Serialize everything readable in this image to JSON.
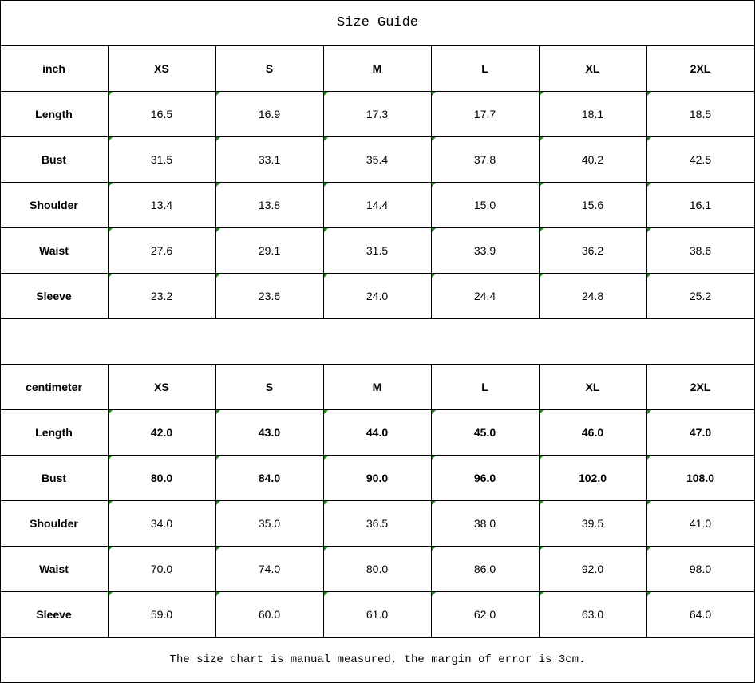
{
  "title": "Size Guide",
  "sizes": [
    "XS",
    "S",
    "M",
    "L",
    "XL",
    "2XL"
  ],
  "indicator_color": "#1a8a1a",
  "inch": {
    "unit_label": "inch",
    "rows": [
      {
        "label": "Length",
        "values": [
          "16.5",
          "16.9",
          "17.3",
          "17.7",
          "18.1",
          "18.5"
        ]
      },
      {
        "label": "Bust",
        "values": [
          "31.5",
          "33.1",
          "35.4",
          "37.8",
          "40.2",
          "42.5"
        ]
      },
      {
        "label": "Shoulder",
        "values": [
          "13.4",
          "13.8",
          "14.4",
          "15.0",
          "15.6",
          "16.1"
        ]
      },
      {
        "label": "Waist",
        "values": [
          "27.6",
          "29.1",
          "31.5",
          "33.9",
          "36.2",
          "38.6"
        ]
      },
      {
        "label": "Sleeve",
        "values": [
          "23.2",
          "23.6",
          "24.0",
          "24.4",
          "24.8",
          "25.2"
        ]
      }
    ]
  },
  "centimeter": {
    "unit_label": "centimeter",
    "rows": [
      {
        "label": "Length",
        "values": [
          "42.0",
          "43.0",
          "44.0",
          "45.0",
          "46.0",
          "47.0"
        ],
        "bold": true
      },
      {
        "label": "Bust",
        "values": [
          "80.0",
          "84.0",
          "90.0",
          "96.0",
          "102.0",
          "108.0"
        ],
        "bold": true
      },
      {
        "label": "Shoulder",
        "values": [
          "34.0",
          "35.0",
          "36.5",
          "38.0",
          "39.5",
          "41.0"
        ]
      },
      {
        "label": "Waist",
        "values": [
          "70.0",
          "74.0",
          "80.0",
          "86.0",
          "92.0",
          "98.0"
        ]
      },
      {
        "label": "Sleeve",
        "values": [
          "59.0",
          "60.0",
          "61.0",
          "62.0",
          "63.0",
          "64.0"
        ]
      }
    ]
  },
  "footer_note": "The size chart is manual measured, the margin of error is 3cm."
}
